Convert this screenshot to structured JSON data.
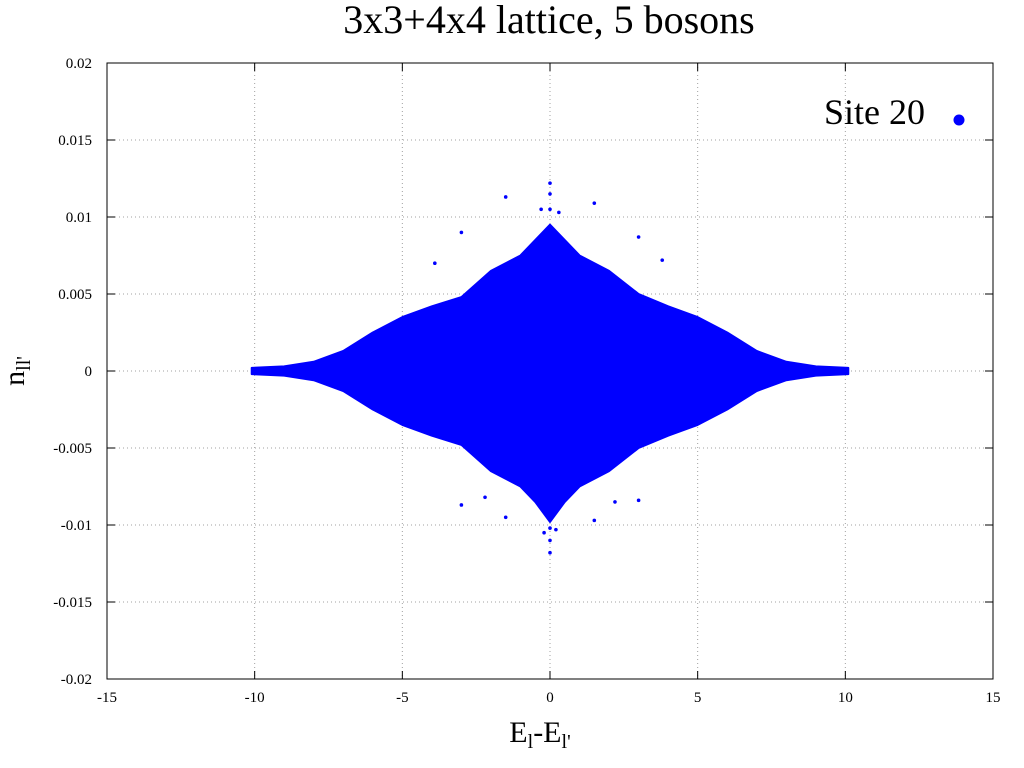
{
  "chart_data": {
    "type": "scatter",
    "title": "3x3+4x4 lattice, 5 bosons",
    "xlabel": {
      "main": "E",
      "sub1": "l",
      "mid": "-E",
      "sub2": "l'"
    },
    "ylabel": {
      "main": "n",
      "sub": "ll'"
    },
    "xlim": [
      -15,
      15
    ],
    "ylim": [
      -0.02,
      0.02
    ],
    "xticks": [
      "-15",
      "-10",
      "-5",
      "0",
      "5",
      "10",
      "15"
    ],
    "yticks": [
      "0.02",
      "0.015",
      "0.01",
      "0.005",
      "0",
      "-0.005",
      "-0.01",
      "-0.015",
      "-0.02"
    ],
    "grid": true,
    "legend_position": "top-right",
    "series": [
      {
        "name": "Site 20",
        "color": "#0000ff",
        "envelope": {
          "x": [
            -10.1,
            -9,
            -8,
            -7,
            -6,
            -5,
            -4,
            -3,
            -2,
            -1,
            -0.5,
            0,
            0.5,
            1,
            2,
            3,
            4,
            5,
            6,
            7,
            8,
            9,
            10.1
          ],
          "y_max": [
            0.0002,
            0.0003,
            0.0006,
            0.0013,
            0.0025,
            0.0035,
            0.0042,
            0.0048,
            0.0065,
            0.0075,
            0.0085,
            0.0095,
            0.0085,
            0.0075,
            0.0065,
            0.005,
            0.0042,
            0.0035,
            0.0025,
            0.0013,
            0.0006,
            0.0003,
            0.0002
          ],
          "y_min": [
            -0.0002,
            -0.0003,
            -0.0006,
            -0.0013,
            -0.0025,
            -0.0035,
            -0.0042,
            -0.0048,
            -0.0065,
            -0.0075,
            -0.0085,
            -0.0098,
            -0.0085,
            -0.0075,
            -0.0065,
            -0.005,
            -0.0042,
            -0.0035,
            -0.0025,
            -0.0013,
            -0.0006,
            -0.0003,
            -0.0002
          ]
        },
        "outliers": {
          "x": [
            0,
            0,
            0,
            0,
            0,
            0,
            -0.3,
            0.3,
            -1.5,
            1.5,
            -3,
            3,
            -3.9,
            3.8,
            -0.2,
            0.2,
            -3,
            3,
            -1.5,
            1.5,
            2.2,
            -2.2
          ],
          "y": [
            0.0122,
            0.0115,
            0.0105,
            -0.0118,
            -0.011,
            -0.0102,
            0.0105,
            0.0103,
            0.0113,
            0.0109,
            0.009,
            0.0087,
            0.007,
            0.0072,
            -0.0105,
            -0.0103,
            -0.0087,
            -0.0084,
            -0.0095,
            -0.0097,
            -0.0085,
            -0.0082
          ]
        }
      }
    ]
  }
}
